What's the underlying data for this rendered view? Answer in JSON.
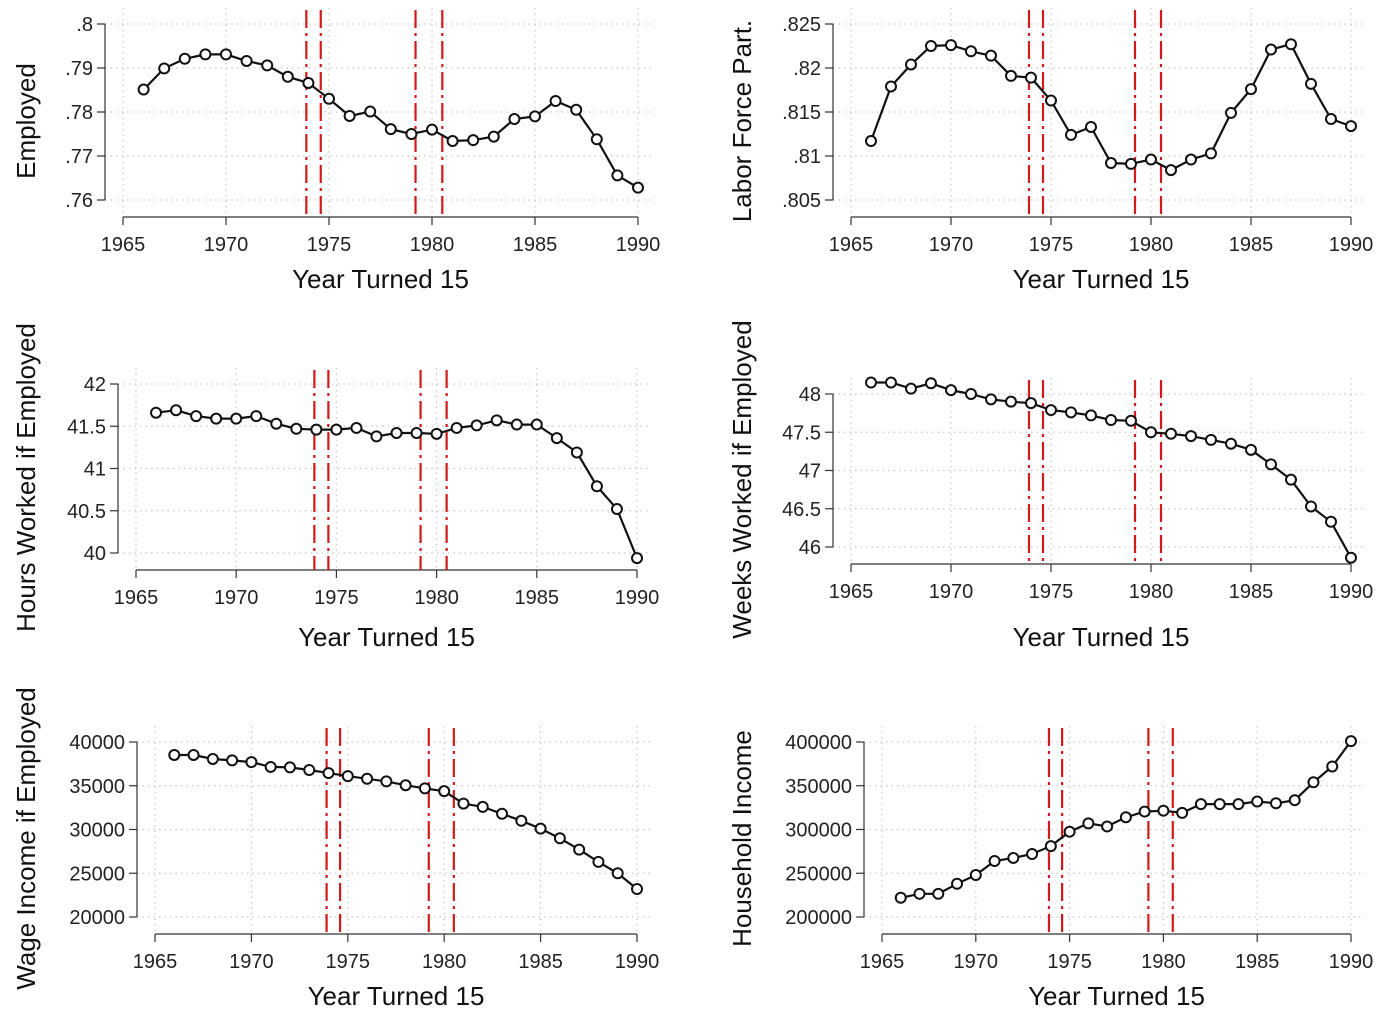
{
  "chart_data": [
    {
      "type": "line",
      "xlabel": "Year Turned 15",
      "ylabel": "Employed",
      "xlim": [
        1965,
        1990
      ],
      "xticks": [
        1965,
        1970,
        1975,
        1980,
        1985,
        1990
      ],
      "xtick_labels": [
        "1965",
        "1970",
        "1975",
        "1980",
        "1985",
        "1990"
      ],
      "ylim": [
        0.76,
        0.8
      ],
      "yticks": [
        0.76,
        0.77,
        0.78,
        0.79,
        0.8
      ],
      "ytick_labels": [
        ".76",
        ".77",
        ".78",
        ".79",
        ".8"
      ],
      "grid": true,
      "reference_lines_x": [
        1973.9,
        1974.6,
        1979.2,
        1980.5
      ],
      "reference_line_color": "#d21a1a",
      "x": [
        1966,
        1967,
        1968,
        1969,
        1970,
        1971,
        1972,
        1973,
        1974,
        1975,
        1976,
        1977,
        1978,
        1979,
        1980,
        1981,
        1982,
        1983,
        1984,
        1985,
        1986,
        1987,
        1988,
        1989,
        1990
      ],
      "values": [
        0.7851,
        0.7899,
        0.7921,
        0.7931,
        0.7931,
        0.7916,
        0.7906,
        0.788,
        0.7866,
        0.783,
        0.7791,
        0.7801,
        0.7761,
        0.775,
        0.776,
        0.7734,
        0.7736,
        0.7744,
        0.7784,
        0.779,
        0.7825,
        0.7805,
        0.7738,
        0.7656,
        0.7628
      ]
    },
    {
      "type": "line",
      "xlabel": "Year Turned 15",
      "ylabel": "Labor Force Part.",
      "xlim": [
        1965,
        1990
      ],
      "xticks": [
        1965,
        1970,
        1975,
        1980,
        1985,
        1990
      ],
      "xtick_labels": [
        "1965",
        "1970",
        "1975",
        "1980",
        "1985",
        "1990"
      ],
      "ylim": [
        0.805,
        0.825
      ],
      "yticks": [
        0.805,
        0.81,
        0.815,
        0.82,
        0.825
      ],
      "ytick_labels": [
        ".805",
        ".81",
        ".815",
        ".82",
        ".825"
      ],
      "grid": true,
      "reference_lines_x": [
        1973.9,
        1974.6,
        1979.2,
        1980.5
      ],
      "reference_line_color": "#d21a1a",
      "x": [
        1966,
        1967,
        1968,
        1969,
        1970,
        1971,
        1972,
        1973,
        1974,
        1975,
        1976,
        1977,
        1978,
        1979,
        1980,
        1981,
        1982,
        1983,
        1984,
        1985,
        1986,
        1987,
        1988,
        1989,
        1990
      ],
      "values": [
        0.8117,
        0.8179,
        0.8204,
        0.8225,
        0.8226,
        0.8219,
        0.8214,
        0.8191,
        0.8189,
        0.8163,
        0.8124,
        0.8133,
        0.8092,
        0.8091,
        0.8096,
        0.8084,
        0.8096,
        0.8103,
        0.8149,
        0.8176,
        0.8221,
        0.8227,
        0.8182,
        0.8142,
        0.8134
      ]
    },
    {
      "type": "line",
      "xlabel": "Year Turned 15",
      "ylabel": "Hours Worked if Employed",
      "xlim": [
        1965,
        1990
      ],
      "xticks": [
        1965,
        1970,
        1975,
        1980,
        1985,
        1990
      ],
      "xtick_labels": [
        "1965",
        "1970",
        "1975",
        "1980",
        "1985",
        "1990"
      ],
      "ylim": [
        40,
        42
      ],
      "yticks": [
        40,
        40.5,
        41,
        41.5,
        42
      ],
      "ytick_labels": [
        "40",
        "40.5",
        "41",
        "41.5",
        "42"
      ],
      "grid": true,
      "reference_lines_x": [
        1973.9,
        1974.6,
        1979.2,
        1980.5
      ],
      "reference_line_color": "#d21a1a",
      "x": [
        1966,
        1967,
        1968,
        1969,
        1970,
        1971,
        1972,
        1973,
        1974,
        1975,
        1976,
        1977,
        1978,
        1979,
        1980,
        1981,
        1982,
        1983,
        1984,
        1985,
        1986,
        1987,
        1988,
        1989,
        1990
      ],
      "values": [
        41.66,
        41.69,
        41.62,
        41.59,
        41.59,
        41.62,
        41.53,
        41.47,
        41.46,
        41.46,
        41.48,
        41.38,
        41.42,
        41.42,
        41.41,
        41.48,
        41.51,
        41.57,
        41.52,
        41.52,
        41.36,
        41.19,
        40.79,
        40.52,
        39.94
      ]
    },
    {
      "type": "line",
      "xlabel": "Year Turned 15",
      "ylabel": "Weeks Worked if Employed",
      "xlim": [
        1965,
        1990
      ],
      "xticks": [
        1965,
        1970,
        1975,
        1980,
        1985,
        1990
      ],
      "xtick_labels": [
        "1965",
        "1970",
        "1975",
        "1980",
        "1985",
        "1990"
      ],
      "ylim": [
        46,
        48
      ],
      "yticks": [
        46,
        46.5,
        47,
        47.5,
        48
      ],
      "ytick_labels": [
        "46",
        "46.5",
        "47",
        "47.5",
        "48"
      ],
      "grid": true,
      "reference_lines_x": [
        1973.9,
        1974.6,
        1979.2,
        1980.5
      ],
      "reference_line_color": "#d21a1a",
      "x": [
        1966,
        1967,
        1968,
        1969,
        1970,
        1971,
        1972,
        1973,
        1974,
        1975,
        1976,
        1977,
        1978,
        1979,
        1980,
        1981,
        1982,
        1983,
        1984,
        1985,
        1986,
        1987,
        1988,
        1989,
        1990
      ],
      "values": [
        48.15,
        48.15,
        48.07,
        48.14,
        48.05,
        48.0,
        47.93,
        47.9,
        47.88,
        47.79,
        47.76,
        47.72,
        47.66,
        47.65,
        47.5,
        47.48,
        47.45,
        47.4,
        47.35,
        47.27,
        47.08,
        46.88,
        46.53,
        46.33,
        45.86
      ]
    },
    {
      "type": "line",
      "xlabel": "Year Turned 15",
      "ylabel": "Wage Income if Employed",
      "xlim": [
        1965,
        1990
      ],
      "xticks": [
        1965,
        1970,
        1975,
        1980,
        1985,
        1990
      ],
      "xtick_labels": [
        "1965",
        "1970",
        "1975",
        "1980",
        "1985",
        "1990"
      ],
      "ylim": [
        20000,
        40000
      ],
      "yticks": [
        20000,
        25000,
        30000,
        35000,
        40000
      ],
      "ytick_labels": [
        "20000",
        "25000",
        "30000",
        "35000",
        "40000"
      ],
      "grid": true,
      "reference_lines_x": [
        1973.9,
        1974.6,
        1979.2,
        1980.5
      ],
      "reference_line_color": "#d21a1a",
      "x": [
        1966,
        1967,
        1968,
        1969,
        1970,
        1971,
        1972,
        1973,
        1974,
        1975,
        1976,
        1977,
        1978,
        1979,
        1980,
        1981,
        1982,
        1983,
        1984,
        1985,
        1986,
        1987,
        1988,
        1989,
        1990
      ],
      "values": [
        38520,
        38520,
        38060,
        37900,
        37700,
        37150,
        37100,
        36800,
        36450,
        36100,
        35800,
        35500,
        35060,
        34700,
        34380,
        32960,
        32580,
        31800,
        31000,
        30100,
        29000,
        27700,
        26300,
        25000,
        23200
      ]
    },
    {
      "type": "line",
      "xlabel": "Year Turned 15",
      "ylabel": "Household Income",
      "xlim": [
        1965,
        1990
      ],
      "xticks": [
        1965,
        1970,
        1975,
        1980,
        1985,
        1990
      ],
      "xtick_labels": [
        "1965",
        "1970",
        "1975",
        "1980",
        "1985",
        "1990"
      ],
      "ylim": [
        200000,
        400000
      ],
      "yticks": [
        200000,
        250000,
        300000,
        350000,
        400000
      ],
      "ytick_labels": [
        "200000",
        "250000",
        "300000",
        "350000",
        "400000"
      ],
      "grid": true,
      "reference_lines_x": [
        1973.9,
        1974.6,
        1979.2,
        1980.5
      ],
      "reference_line_color": "#d21a1a",
      "x": [
        1966,
        1967,
        1968,
        1969,
        1970,
        1971,
        1972,
        1973,
        1974,
        1975,
        1976,
        1977,
        1978,
        1979,
        1980,
        1981,
        1982,
        1983,
        1984,
        1985,
        1986,
        1987,
        1988,
        1989,
        1990
      ],
      "values": [
        222000,
        226500,
        226500,
        238000,
        248000,
        264000,
        267500,
        272000,
        281000,
        297500,
        307000,
        303500,
        314000,
        320500,
        321500,
        319000,
        329000,
        329000,
        329000,
        332000,
        330000,
        333500,
        354000,
        372000,
        401000
      ]
    }
  ]
}
